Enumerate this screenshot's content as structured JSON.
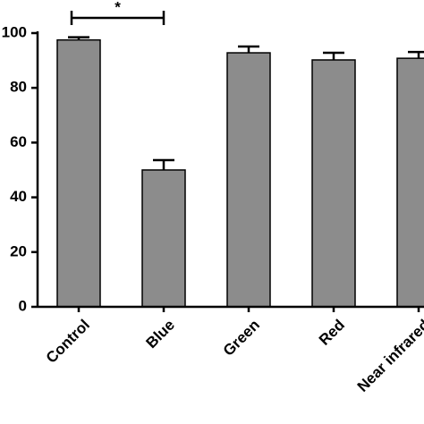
{
  "chart_data": {
    "type": "bar",
    "categories": [
      "Control",
      "Blue",
      "Green",
      "Red",
      "Near infrared"
    ],
    "values": [
      97.5,
      50,
      92.8,
      90.2,
      90.8
    ],
    "errors": [
      1,
      3.6,
      2.3,
      2.6,
      2.3
    ],
    "color": "#8c8c8c",
    "ylim": [
      0,
      100
    ],
    "yticks": [
      0,
      20,
      40,
      60,
      80,
      100
    ],
    "annotations": [
      {
        "text": "*",
        "from": 0,
        "to": 1
      }
    ]
  }
}
